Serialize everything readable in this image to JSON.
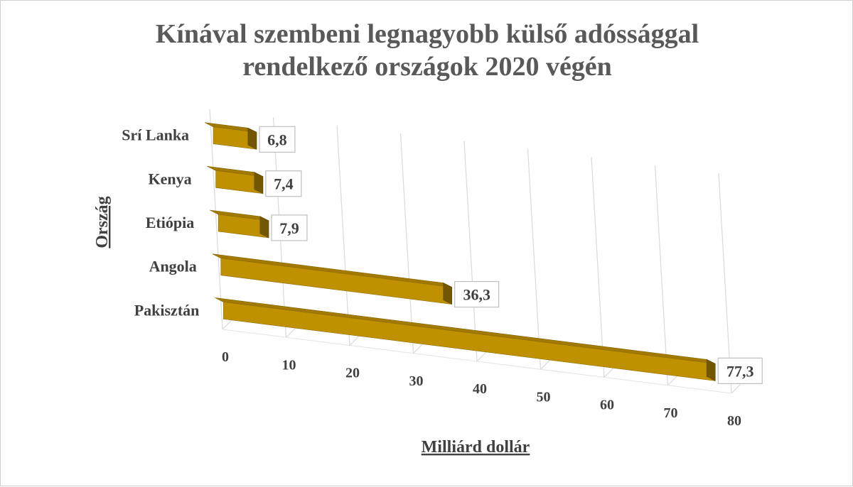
{
  "chart_data": {
    "type": "bar",
    "orientation": "horizontal",
    "style": "3d",
    "title_lines": [
      "Kínával szembeni legnagyobb külső adóssággal",
      "rendelkező országok 2020 végén"
    ],
    "xlabel": "Milliárd dollár",
    "ylabel": "Ország",
    "categories": [
      "Srí Lanka",
      "Kenya",
      "Etiópia",
      "Angola",
      "Pakisztán"
    ],
    "values": [
      6.8,
      7.4,
      7.9,
      36.3,
      77.3
    ],
    "data_labels": [
      "6,8",
      "7,4",
      "7,9",
      "36,3",
      "77,3"
    ],
    "xlim": [
      0,
      80
    ],
    "ticks": [
      0,
      10,
      20,
      30,
      40,
      50,
      60,
      70,
      80
    ],
    "grid": true,
    "legend": "none",
    "bar_color": "#BF9000"
  }
}
